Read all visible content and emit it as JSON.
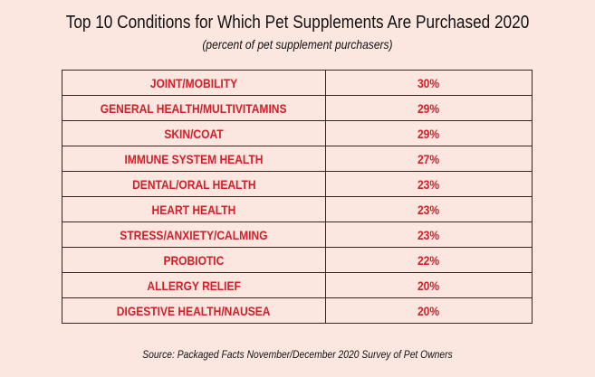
{
  "chart_data": {
    "type": "table",
    "title": "Top 10 Conditions for Which Pet Supplements Are Purchased 2020",
    "subtitle": "(percent of pet supplement purchasers)",
    "rows": [
      {
        "condition": "JOINT/MOBILITY",
        "percent": "30%"
      },
      {
        "condition": "GENERAL HEALTH/MULTIVITAMINS",
        "percent": "29%"
      },
      {
        "condition": "SKIN/COAT",
        "percent": "29%"
      },
      {
        "condition": "IMMUNE SYSTEM HEALTH",
        "percent": "27%"
      },
      {
        "condition": "DENTAL/ORAL HEALTH",
        "percent": "23%"
      },
      {
        "condition": "HEART HEALTH",
        "percent": "23%"
      },
      {
        "condition": "STRESS/ANXIETY/CALMING",
        "percent": "23%"
      },
      {
        "condition": "PROBIOTIC",
        "percent": "22%"
      },
      {
        "condition": "ALLERGY RELIEF",
        "percent": "20%"
      },
      {
        "condition": "DIGESTIVE HEALTH/NAUSEA",
        "percent": "20%"
      }
    ],
    "values": [
      30,
      29,
      29,
      27,
      23,
      23,
      23,
      22,
      20,
      20
    ],
    "source": "Source: Packaged Facts November/December 2020 Survey of Pet Owners"
  },
  "colors": {
    "background": "#fbe6e0",
    "text_accent": "#d0202a",
    "border": "#3b2222"
  }
}
